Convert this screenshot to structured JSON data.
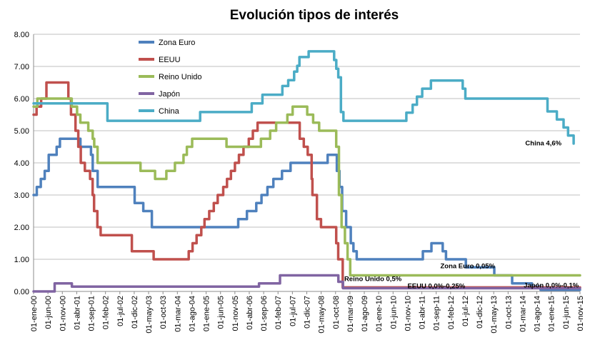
{
  "chart_data": {
    "type": "line",
    "title": "Evolución tipos de interés",
    "ylim": [
      0,
      8
    ],
    "yticks": [
      "0.00",
      "1.00",
      "2.00",
      "3.00",
      "4.00",
      "5.00",
      "6.00",
      "7.00",
      "8.00"
    ],
    "grid": "horizontal",
    "legend_position": "top-left",
    "xlim": [
      "2000-01-01",
      "2015-11-01"
    ],
    "xtick_labels": [
      "01-ene-00",
      "01-jun-00",
      "01-nov-00",
      "01-abr-01",
      "01-sep-01",
      "01-feb-02",
      "01-jul-02",
      "01-dic-02",
      "01-may-03",
      "01-oct-03",
      "01-mar-04",
      "01-ago-04",
      "01-ene-05",
      "01-jun-05",
      "01-nov-05",
      "01-abr-06",
      "01-sep-06",
      "01-feb-07",
      "01-jul-07",
      "01-dic-07",
      "01-may-08",
      "01-oct-08",
      "01-mar-09",
      "01-ago-09",
      "01-ene-10",
      "01-jun-10",
      "01-nov-10",
      "01-abr-11",
      "01-sep-11",
      "01-feb-12",
      "01-jul-12",
      "01-dic-12",
      "01-may-13",
      "01-oct-13",
      "01-mar-14",
      "01-ago-14",
      "01-ene-15",
      "01-jun-15",
      "01-nov-15"
    ],
    "series": [
      {
        "name": "Zona Euro",
        "color": "#4f81bd",
        "points": [
          [
            "2000-01-01",
            3.0
          ],
          [
            "2000-02-04",
            3.25
          ],
          [
            "2000-03-17",
            3.5
          ],
          [
            "2000-04-28",
            3.75
          ],
          [
            "2000-06-09",
            4.25
          ],
          [
            "2000-09-01",
            4.5
          ],
          [
            "2000-10-06",
            4.75
          ],
          [
            "2001-05-11",
            4.5
          ],
          [
            "2001-08-31",
            4.25
          ],
          [
            "2001-09-18",
            3.75
          ],
          [
            "2001-11-09",
            3.25
          ],
          [
            "2002-12-06",
            2.75
          ],
          [
            "2003-03-07",
            2.5
          ],
          [
            "2003-06-06",
            2.0
          ],
          [
            "2005-12-06",
            2.25
          ],
          [
            "2006-03-08",
            2.5
          ],
          [
            "2006-06-15",
            2.75
          ],
          [
            "2006-08-09",
            3.0
          ],
          [
            "2006-10-11",
            3.25
          ],
          [
            "2006-12-13",
            3.5
          ],
          [
            "2007-03-14",
            3.75
          ],
          [
            "2007-06-13",
            4.0
          ],
          [
            "2008-07-09",
            4.25
          ],
          [
            "2008-10-15",
            3.75
          ],
          [
            "2008-11-12",
            3.25
          ],
          [
            "2008-12-10",
            2.5
          ],
          [
            "2009-01-21",
            2.0
          ],
          [
            "2009-03-11",
            1.5
          ],
          [
            "2009-04-08",
            1.25
          ],
          [
            "2009-05-13",
            1.0
          ],
          [
            "2011-04-13",
            1.25
          ],
          [
            "2011-07-13",
            1.5
          ],
          [
            "2011-11-09",
            1.25
          ],
          [
            "2011-12-14",
            1.0
          ],
          [
            "2012-07-11",
            0.75
          ],
          [
            "2013-05-08",
            0.5
          ],
          [
            "2013-11-13",
            0.25
          ],
          [
            "2014-06-11",
            0.15
          ],
          [
            "2014-09-10",
            0.05
          ],
          [
            "2015-11-01",
            0.05
          ]
        ]
      },
      {
        "name": "EEUU",
        "color": "#c0504d",
        "points": [
          [
            "2000-01-01",
            5.5
          ],
          [
            "2000-02-02",
            5.75
          ],
          [
            "2000-03-21",
            6.0
          ],
          [
            "2000-05-16",
            6.5
          ],
          [
            "2001-01-03",
            6.0
          ],
          [
            "2001-01-31",
            5.5
          ],
          [
            "2001-03-20",
            5.0
          ],
          [
            "2001-04-18",
            4.5
          ],
          [
            "2001-05-15",
            4.0
          ],
          [
            "2001-06-27",
            3.75
          ],
          [
            "2001-08-21",
            3.5
          ],
          [
            "2001-09-17",
            3.0
          ],
          [
            "2001-10-02",
            2.5
          ],
          [
            "2001-11-06",
            2.0
          ],
          [
            "2001-12-11",
            1.75
          ],
          [
            "2002-11-06",
            1.25
          ],
          [
            "2003-06-25",
            1.0
          ],
          [
            "2004-06-30",
            1.25
          ],
          [
            "2004-08-10",
            1.5
          ],
          [
            "2004-09-21",
            1.75
          ],
          [
            "2004-11-10",
            2.0
          ],
          [
            "2004-12-14",
            2.25
          ],
          [
            "2005-02-02",
            2.5
          ],
          [
            "2005-03-22",
            2.75
          ],
          [
            "2005-05-03",
            3.0
          ],
          [
            "2005-06-30",
            3.25
          ],
          [
            "2005-08-09",
            3.5
          ],
          [
            "2005-09-20",
            3.75
          ],
          [
            "2005-11-01",
            4.0
          ],
          [
            "2005-12-13",
            4.25
          ],
          [
            "2006-01-31",
            4.5
          ],
          [
            "2006-03-28",
            4.75
          ],
          [
            "2006-05-10",
            5.0
          ],
          [
            "2006-06-29",
            5.25
          ],
          [
            "2007-09-18",
            4.75
          ],
          [
            "2007-10-31",
            4.5
          ],
          [
            "2007-12-11",
            4.25
          ],
          [
            "2008-01-22",
            3.5
          ],
          [
            "2008-01-30",
            3.0
          ],
          [
            "2008-03-18",
            2.25
          ],
          [
            "2008-04-30",
            2.0
          ],
          [
            "2008-10-08",
            1.5
          ],
          [
            "2008-10-29",
            1.0
          ],
          [
            "2008-12-16",
            0.125
          ],
          [
            "2015-11-01",
            0.125
          ]
        ]
      },
      {
        "name": "Reino Unido",
        "color": "#9bbb59",
        "points": [
          [
            "2000-01-01",
            5.75
          ],
          [
            "2000-01-13",
            5.75
          ],
          [
            "2000-02-10",
            6.0
          ],
          [
            "2001-02-08",
            5.75
          ],
          [
            "2001-04-05",
            5.5
          ],
          [
            "2001-05-10",
            5.25
          ],
          [
            "2001-08-02",
            5.0
          ],
          [
            "2001-09-18",
            4.75
          ],
          [
            "2001-10-04",
            4.5
          ],
          [
            "2001-11-08",
            4.0
          ],
          [
            "2003-02-06",
            3.75
          ],
          [
            "2003-07-10",
            3.5
          ],
          [
            "2003-11-06",
            3.75
          ],
          [
            "2004-02-05",
            4.0
          ],
          [
            "2004-05-06",
            4.25
          ],
          [
            "2004-06-10",
            4.5
          ],
          [
            "2004-08-05",
            4.75
          ],
          [
            "2005-08-04",
            4.5
          ],
          [
            "2006-08-03",
            4.75
          ],
          [
            "2006-11-09",
            5.0
          ],
          [
            "2007-01-11",
            5.25
          ],
          [
            "2007-05-10",
            5.5
          ],
          [
            "2007-07-05",
            5.75
          ],
          [
            "2007-12-06",
            5.5
          ],
          [
            "2008-02-07",
            5.25
          ],
          [
            "2008-04-10",
            5.0
          ],
          [
            "2008-10-08",
            4.5
          ],
          [
            "2008-11-06",
            3.0
          ],
          [
            "2008-12-04",
            2.0
          ],
          [
            "2009-01-08",
            1.5
          ],
          [
            "2009-02-05",
            1.0
          ],
          [
            "2009-03-05",
            0.5
          ],
          [
            "2015-11-01",
            0.5
          ]
        ]
      },
      {
        "name": "Japón",
        "color": "#8064a2",
        "points": [
          [
            "2000-01-01",
            0.0
          ],
          [
            "2000-08-11",
            0.25
          ],
          [
            "2001-02-09",
            0.15
          ],
          [
            "2006-07-14",
            0.15
          ],
          [
            "2006-07-14",
            0.25
          ],
          [
            "2007-02-21",
            0.5
          ],
          [
            "2008-10-31",
            0.3
          ],
          [
            "2008-12-19",
            0.1
          ],
          [
            "2015-11-01",
            0.1
          ]
        ]
      },
      {
        "name": "China",
        "color": "#4bacc6",
        "points": [
          [
            "2000-01-01",
            5.85
          ],
          [
            "2002-02-21",
            5.31
          ],
          [
            "2004-10-29",
            5.58
          ],
          [
            "2006-04-28",
            5.85
          ],
          [
            "2006-08-19",
            6.12
          ],
          [
            "2007-03-18",
            6.39
          ],
          [
            "2007-05-19",
            6.57
          ],
          [
            "2007-07-21",
            6.84
          ],
          [
            "2007-08-22",
            7.02
          ],
          [
            "2007-09-15",
            7.29
          ],
          [
            "2007-12-21",
            7.47
          ],
          [
            "2008-09-16",
            7.2
          ],
          [
            "2008-10-09",
            6.93
          ],
          [
            "2008-10-30",
            6.66
          ],
          [
            "2008-11-27",
            5.58
          ],
          [
            "2008-12-23",
            5.31
          ],
          [
            "2010-10-20",
            5.56
          ],
          [
            "2010-12-26",
            5.81
          ],
          [
            "2011-02-09",
            6.06
          ],
          [
            "2011-04-06",
            6.31
          ],
          [
            "2011-07-07",
            6.56
          ],
          [
            "2012-06-08",
            6.31
          ],
          [
            "2012-07-06",
            6.0
          ],
          [
            "2014-11-22",
            5.6
          ],
          [
            "2015-03-01",
            5.35
          ],
          [
            "2015-05-11",
            5.1
          ],
          [
            "2015-06-28",
            4.85
          ],
          [
            "2015-08-26",
            4.6
          ]
        ]
      }
    ],
    "annotations": [
      {
        "text": "China  4,6%",
        "at": [
          "2014-04-01",
          4.55
        ]
      },
      {
        "text": "Zona  Euro  0,05%",
        "at": [
          "2011-10-15",
          0.72
        ]
      },
      {
        "text": "Reino  Unido  0,5%",
        "at": [
          "2009-01-01",
          0.32
        ]
      },
      {
        "text": "EEUU  0,0%-0,25%",
        "at": [
          "2010-11-01",
          0.1
        ]
      },
      {
        "text": "Japón  0,0%-0,1%",
        "at": [
          "2014-03-15",
          0.12
        ]
      }
    ]
  }
}
